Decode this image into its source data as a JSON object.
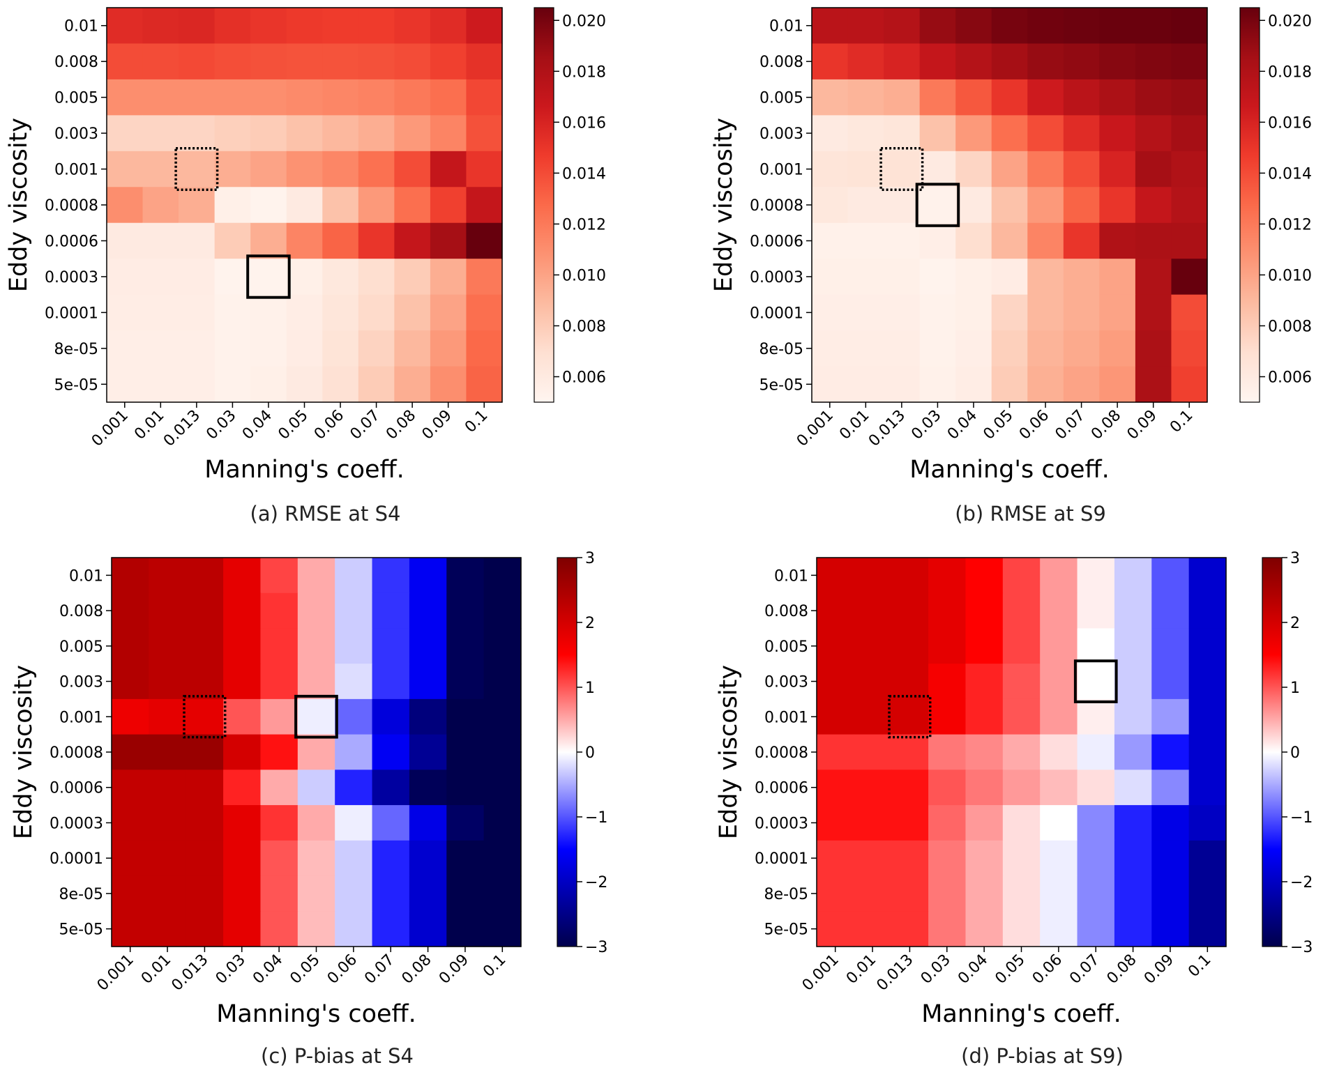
{
  "colors": {
    "reds": [
      "#fff5f0",
      "#fee0d2",
      "#fcbba1",
      "#fc9272",
      "#fb6a4a",
      "#ef3b2c",
      "#cb181d",
      "#a50f15",
      "#67000d"
    ],
    "seismic": [
      "#00004c",
      "#0000ff",
      "#ffffff",
      "#ff0000",
      "#7f0000"
    ],
    "box": "#000000"
  },
  "chart_data": [
    {
      "type": "heatmap",
      "caption": "(a) RMSE at S4",
      "xlabel": "Manning's coeff.",
      "ylabel": "Eddy viscosity",
      "x_categories": [
        "0.001",
        "0.01",
        "0.013",
        "0.03",
        "0.04",
        "0.05",
        "0.06",
        "0.07",
        "0.08",
        "0.09",
        "0.1"
      ],
      "y_categories": [
        "0.01",
        "0.008",
        "0.005",
        "0.003",
        "0.001",
        "0.0008",
        "0.0006",
        "0.0003",
        "0.0001",
        "8e-05",
        "5e-05"
      ],
      "colormap": "Reds",
      "vmin": 0.005,
      "vmax": 0.0205,
      "colorbar_ticks": [
        "0.006",
        "0.008",
        "0.010",
        "0.012",
        "0.014",
        "0.016",
        "0.018",
        "0.020"
      ],
      "values": [
        [
          0.0155,
          0.0157,
          0.0158,
          0.0153,
          0.015,
          0.0148,
          0.0147,
          0.0147,
          0.015,
          0.0155,
          0.0165
        ],
        [
          0.014,
          0.014,
          0.0141,
          0.0139,
          0.0138,
          0.0137,
          0.0137,
          0.0138,
          0.014,
          0.0145,
          0.0152
        ],
        [
          0.011,
          0.011,
          0.011,
          0.011,
          0.011,
          0.0112,
          0.0114,
          0.0116,
          0.012,
          0.0125,
          0.0142
        ],
        [
          0.0075,
          0.0075,
          0.0075,
          0.0078,
          0.008,
          0.0085,
          0.009,
          0.0095,
          0.0105,
          0.0115,
          0.0138
        ],
        [
          0.009,
          0.009,
          0.009,
          0.0095,
          0.01,
          0.0108,
          0.0114,
          0.0124,
          0.014,
          0.017,
          0.015
        ],
        [
          0.011,
          0.01,
          0.0095,
          0.0055,
          0.0052,
          0.006,
          0.0085,
          0.0105,
          0.0125,
          0.0145,
          0.017
        ],
        [
          0.006,
          0.006,
          0.006,
          0.008,
          0.0095,
          0.0115,
          0.013,
          0.015,
          0.017,
          0.0185,
          0.0205
        ],
        [
          0.0058,
          0.0058,
          0.0058,
          0.0052,
          0.0052,
          0.0055,
          0.0062,
          0.007,
          0.008,
          0.0095,
          0.012
        ],
        [
          0.0057,
          0.0057,
          0.0057,
          0.0053,
          0.0054,
          0.0057,
          0.0064,
          0.0072,
          0.0085,
          0.01,
          0.0125
        ],
        [
          0.0056,
          0.0056,
          0.0056,
          0.0053,
          0.0054,
          0.0058,
          0.0066,
          0.0076,
          0.009,
          0.0105,
          0.0128
        ],
        [
          0.0056,
          0.0056,
          0.0056,
          0.0053,
          0.0055,
          0.006,
          0.0068,
          0.008,
          0.0095,
          0.011,
          0.013
        ]
      ],
      "best_box": {
        "x": "0.04",
        "y": "0.0003",
        "style": "solid"
      },
      "ref_box": {
        "x": "0.013",
        "y": "0.001",
        "style": "dotted"
      }
    },
    {
      "type": "heatmap",
      "caption": "(b) RMSE at S9",
      "xlabel": "Manning's coeff.",
      "ylabel": "Eddy viscosity",
      "x_categories": [
        "0.001",
        "0.01",
        "0.013",
        "0.03",
        "0.04",
        "0.05",
        "0.06",
        "0.07",
        "0.08",
        "0.09",
        "0.1"
      ],
      "y_categories": [
        "0.01",
        "0.008",
        "0.005",
        "0.003",
        "0.001",
        "0.0008",
        "0.0006",
        "0.0003",
        "0.0001",
        "8e-05",
        "5e-05"
      ],
      "colormap": "Reds",
      "vmin": 0.005,
      "vmax": 0.0205,
      "colorbar_ticks": [
        "0.006",
        "0.008",
        "0.010",
        "0.012",
        "0.014",
        "0.016",
        "0.018",
        "0.020"
      ],
      "values": [
        [
          0.0175,
          0.0175,
          0.0178,
          0.019,
          0.0195,
          0.02,
          0.0202,
          0.0203,
          0.0204,
          0.0204,
          0.0205
        ],
        [
          0.015,
          0.0155,
          0.016,
          0.017,
          0.0178,
          0.0185,
          0.019,
          0.0192,
          0.0195,
          0.0197,
          0.0198
        ],
        [
          0.009,
          0.0092,
          0.0095,
          0.012,
          0.0135,
          0.015,
          0.0165,
          0.0175,
          0.0182,
          0.0188,
          0.019
        ],
        [
          0.006,
          0.0062,
          0.0064,
          0.0085,
          0.0105,
          0.0125,
          0.014,
          0.0155,
          0.0168,
          0.0178,
          0.0185
        ],
        [
          0.0065,
          0.0066,
          0.0067,
          0.006,
          0.0075,
          0.01,
          0.012,
          0.014,
          0.016,
          0.0185,
          0.018
        ],
        [
          0.0062,
          0.006,
          0.006,
          0.0053,
          0.006,
          0.0085,
          0.0105,
          0.013,
          0.015,
          0.017,
          0.0178
        ],
        [
          0.0054,
          0.0054,
          0.0054,
          0.0056,
          0.007,
          0.009,
          0.0115,
          0.015,
          0.018,
          0.0182,
          0.0182
        ],
        [
          0.0055,
          0.0055,
          0.0055,
          0.0052,
          0.0055,
          0.0058,
          0.009,
          0.0095,
          0.01,
          0.018,
          0.0205
        ],
        [
          0.0056,
          0.0056,
          0.0056,
          0.0053,
          0.0055,
          0.0075,
          0.009,
          0.0095,
          0.01,
          0.018,
          0.014
        ],
        [
          0.0057,
          0.0057,
          0.0057,
          0.0053,
          0.0056,
          0.0078,
          0.0092,
          0.0097,
          0.0103,
          0.0182,
          0.0142
        ],
        [
          0.0058,
          0.0058,
          0.0058,
          0.0054,
          0.0057,
          0.008,
          0.0094,
          0.01,
          0.0106,
          0.0182,
          0.0145
        ]
      ],
      "best_box": {
        "x": "0.03",
        "y": "0.0008",
        "style": "solid"
      },
      "ref_box": {
        "x": "0.013",
        "y": "0.001",
        "style": "dotted"
      }
    },
    {
      "type": "heatmap",
      "caption": "(c) P-bias at S4",
      "xlabel": "Manning's coeff.",
      "ylabel": "Eddy viscosity",
      "x_categories": [
        "0.001",
        "0.01",
        "0.013",
        "0.03",
        "0.04",
        "0.05",
        "0.06",
        "0.07",
        "0.08",
        "0.09",
        "0.1"
      ],
      "y_categories": [
        "0.01",
        "0.008",
        "0.005",
        "0.003",
        "0.001",
        "0.0008",
        "0.0006",
        "0.0003",
        "0.0001",
        "8e-05",
        "5e-05"
      ],
      "colormap": "seismic",
      "vmin": -3,
      "vmax": 3,
      "colorbar_ticks": [
        "−3",
        "−2",
        "−1",
        "0",
        "1",
        "2",
        "3"
      ],
      "values": [
        [
          2.4,
          2.3,
          2.3,
          1.8,
          1.1,
          0.5,
          -0.3,
          -1.2,
          -1.6,
          -2.9,
          -3.0
        ],
        [
          2.4,
          2.3,
          2.3,
          1.8,
          1.2,
          0.5,
          -0.3,
          -1.2,
          -1.6,
          -2.9,
          -3.0
        ],
        [
          2.4,
          2.3,
          2.3,
          1.8,
          1.2,
          0.5,
          -0.3,
          -1.2,
          -1.6,
          -2.9,
          -3.0
        ],
        [
          2.4,
          2.3,
          2.3,
          1.8,
          1.2,
          0.5,
          -0.2,
          -1.2,
          -1.6,
          -2.9,
          -3.0
        ],
        [
          1.7,
          1.8,
          1.8,
          1.0,
          0.6,
          -0.1,
          -0.9,
          -1.8,
          -2.6,
          -3.0,
          -3.0
        ],
        [
          2.7,
          2.7,
          2.7,
          2.0,
          1.4,
          0.5,
          -0.5,
          -1.6,
          -2.4,
          -3.0,
          -3.0
        ],
        [
          2.2,
          2.2,
          2.2,
          1.3,
          0.5,
          -0.3,
          -1.3,
          -2.3,
          -2.9,
          -3.0,
          -3.0
        ],
        [
          2.2,
          2.2,
          2.2,
          1.8,
          1.2,
          0.5,
          -0.1,
          -0.9,
          -1.7,
          -2.8,
          -3.0
        ],
        [
          2.2,
          2.2,
          2.2,
          1.8,
          1.0,
          0.4,
          -0.3,
          -1.3,
          -1.9,
          -3.0,
          -3.0
        ],
        [
          2.2,
          2.2,
          2.2,
          1.8,
          1.0,
          0.4,
          -0.3,
          -1.3,
          -1.9,
          -3.0,
          -3.0
        ],
        [
          2.2,
          2.2,
          2.2,
          1.8,
          1.0,
          0.4,
          -0.3,
          -1.3,
          -1.9,
          -3.0,
          -3.0
        ]
      ],
      "best_box": {
        "x": "0.05",
        "y": "0.001",
        "style": "solid"
      },
      "ref_box": {
        "x": "0.013",
        "y": "0.001",
        "style": "dotted"
      }
    },
    {
      "type": "heatmap",
      "caption": "(d) P-bias at S9)",
      "xlabel": "Manning's coeff.",
      "ylabel": "Eddy viscosity",
      "x_categories": [
        "0.001",
        "0.01",
        "0.013",
        "0.03",
        "0.04",
        "0.05",
        "0.06",
        "0.07",
        "0.08",
        "0.09",
        "0.1"
      ],
      "y_categories": [
        "0.01",
        "0.008",
        "0.005",
        "0.003",
        "0.001",
        "0.0008",
        "0.0006",
        "0.0003",
        "0.0001",
        "8e-05",
        "5e-05"
      ],
      "colormap": "seismic",
      "vmin": -3,
      "vmax": 3,
      "colorbar_ticks": [
        "−3",
        "−2",
        "−1",
        "0",
        "1",
        "2",
        "3"
      ],
      "values": [
        [
          2.0,
          2.0,
          2.0,
          1.8,
          1.5,
          1.1,
          0.6,
          0.1,
          -0.3,
          -1.0,
          -1.9
        ],
        [
          2.0,
          2.0,
          2.0,
          1.8,
          1.5,
          1.1,
          0.6,
          0.1,
          -0.3,
          -1.0,
          -1.9
        ],
        [
          2.0,
          2.0,
          2.0,
          1.8,
          1.5,
          1.1,
          0.6,
          0.0,
          -0.3,
          -1.0,
          -1.9
        ],
        [
          2.0,
          2.0,
          2.0,
          1.6,
          1.3,
          1.0,
          0.6,
          0.0,
          -0.3,
          -1.0,
          -1.9
        ],
        [
          2.0,
          2.0,
          2.0,
          1.6,
          1.3,
          1.0,
          0.6,
          0.1,
          -0.3,
          -0.6,
          -1.9
        ],
        [
          1.2,
          1.2,
          1.2,
          0.8,
          0.7,
          0.5,
          0.2,
          -0.1,
          -0.6,
          -1.4,
          -1.9
        ],
        [
          1.4,
          1.4,
          1.4,
          1.0,
          0.8,
          0.6,
          0.4,
          0.2,
          -0.2,
          -0.7,
          -1.9
        ],
        [
          1.4,
          1.4,
          1.4,
          0.9,
          0.6,
          0.2,
          0.0,
          -0.7,
          -1.3,
          -1.7,
          -2.0
        ],
        [
          1.2,
          1.2,
          1.2,
          0.8,
          0.5,
          0.2,
          -0.1,
          -0.7,
          -1.3,
          -1.7,
          -2.4
        ],
        [
          1.2,
          1.2,
          1.2,
          0.8,
          0.5,
          0.2,
          -0.1,
          -0.7,
          -1.3,
          -1.7,
          -2.4
        ],
        [
          1.2,
          1.2,
          1.2,
          0.8,
          0.5,
          0.2,
          -0.1,
          -0.7,
          -1.3,
          -1.7,
          -2.4
        ]
      ],
      "best_box": {
        "x": "0.07",
        "y": "0.003",
        "style": "solid"
      },
      "ref_box": {
        "x": "0.013",
        "y": "0.001",
        "style": "dotted"
      }
    }
  ]
}
